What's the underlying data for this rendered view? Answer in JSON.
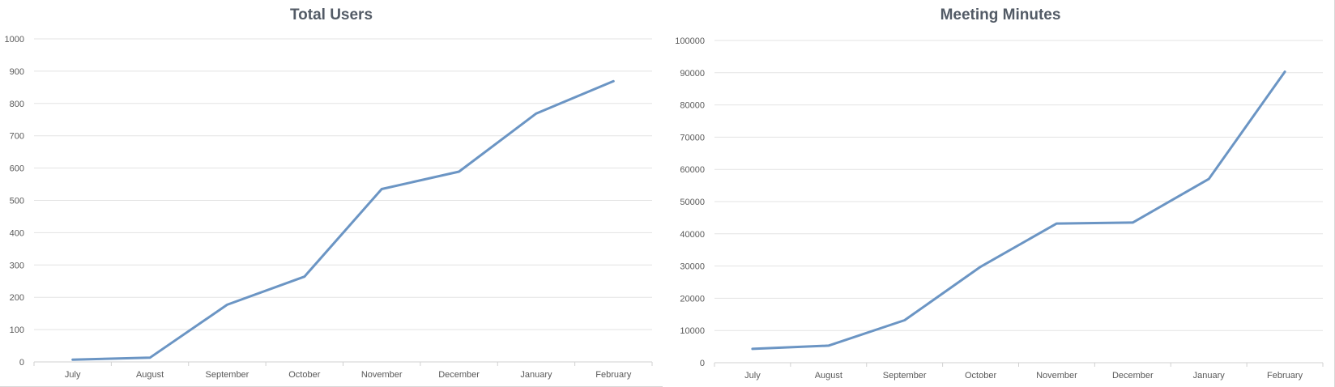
{
  "chart_data": [
    {
      "type": "line",
      "title": "Total Users",
      "categories": [
        "July",
        "August",
        "September",
        "October",
        "November",
        "December",
        "January",
        "February"
      ],
      "series": [
        {
          "name": "Total Users",
          "values": [
            7,
            13,
            177,
            264,
            535,
            589,
            769,
            869
          ]
        }
      ],
      "xlabel": "",
      "ylabel": "",
      "ylim": [
        0,
        1000
      ],
      "yticks": [
        0,
        100,
        200,
        300,
        400,
        500,
        600,
        700,
        800,
        900,
        1000
      ],
      "grid": true,
      "legend": "none",
      "line_color": "#6b95c4"
    },
    {
      "type": "line",
      "title": "Meeting Minutes",
      "categories": [
        "July",
        "August",
        "September",
        "October",
        "November",
        "December",
        "January",
        "February"
      ],
      "series": [
        {
          "name": "Meeting Minutes",
          "values": [
            4300,
            5300,
            13200,
            29800,
            43200,
            43500,
            57000,
            90300
          ]
        }
      ],
      "xlabel": "",
      "ylabel": "",
      "ylim": [
        0,
        100000
      ],
      "yticks": [
        0,
        10000,
        20000,
        30000,
        40000,
        50000,
        60000,
        70000,
        80000,
        90000,
        100000
      ],
      "grid": true,
      "legend": "none",
      "line_color": "#6b95c4"
    }
  ],
  "charts": {
    "left": {
      "title": "Total Users"
    },
    "right": {
      "title": "Meeting Minutes"
    }
  }
}
